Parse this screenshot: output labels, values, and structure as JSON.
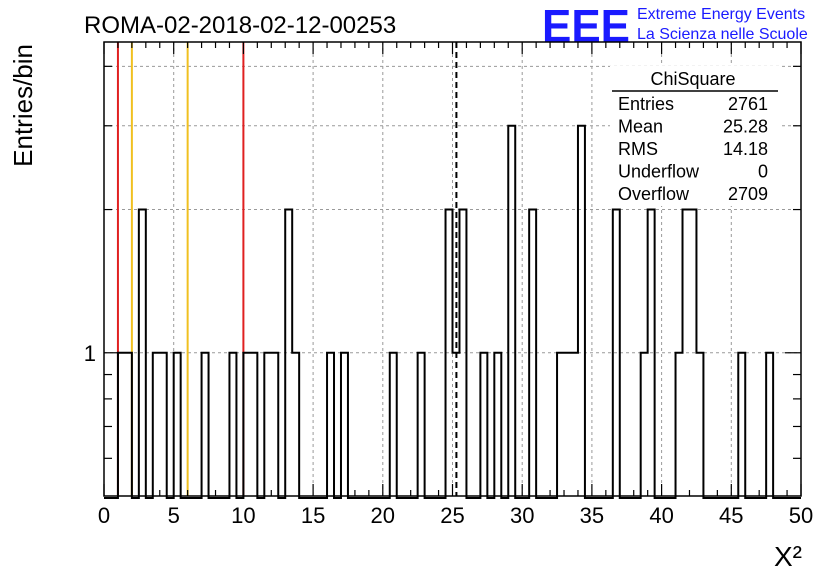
{
  "header": {
    "title": "ROMA-02-2018-02-12-00253",
    "logo_text": "EEE",
    "logo_line1": "Extreme Energy Events",
    "logo_line2": "La Scienza nelle Scuole",
    "logo_color": "#1a1aff"
  },
  "stats_box": {
    "title": "ChiSquare",
    "rows": [
      {
        "label": "Entries",
        "value": "2761"
      },
      {
        "label": "Mean",
        "value": "25.28"
      },
      {
        "label": "RMS",
        "value": "14.18"
      },
      {
        "label": "Underflow",
        "value": "0"
      },
      {
        "label": "Overflow",
        "value": "2709"
      }
    ]
  },
  "chart_data": {
    "type": "bar",
    "histogram": "step",
    "xlabel": "X²",
    "ylabel": "Entries/bin",
    "xlim": [
      0,
      50
    ],
    "ylim": [
      0.5,
      4.5
    ],
    "yscale": "log",
    "bin_width": 0.5,
    "grid": true,
    "xticks": [
      0,
      5,
      10,
      15,
      20,
      25,
      30,
      35,
      40,
      45,
      50
    ],
    "ytick_labels": [
      {
        "value": 1,
        "label": "1"
      }
    ],
    "bins": [
      {
        "x": 1.0,
        "y": 1
      },
      {
        "x": 1.5,
        "y": 1
      },
      {
        "x": 2.5,
        "y": 2
      },
      {
        "x": 3.5,
        "y": 1
      },
      {
        "x": 4.0,
        "y": 1
      },
      {
        "x": 5.0,
        "y": 1
      },
      {
        "x": 7.0,
        "y": 1
      },
      {
        "x": 9.0,
        "y": 1
      },
      {
        "x": 10.0,
        "y": 1
      },
      {
        "x": 10.5,
        "y": 1
      },
      {
        "x": 11.5,
        "y": 1
      },
      {
        "x": 12.0,
        "y": 1
      },
      {
        "x": 13.0,
        "y": 2
      },
      {
        "x": 13.5,
        "y": 1
      },
      {
        "x": 16.0,
        "y": 1
      },
      {
        "x": 17.0,
        "y": 1
      },
      {
        "x": 20.5,
        "y": 1
      },
      {
        "x": 22.5,
        "y": 1
      },
      {
        "x": 24.5,
        "y": 2
      },
      {
        "x": 25.0,
        "y": 1
      },
      {
        "x": 25.5,
        "y": 2
      },
      {
        "x": 27.0,
        "y": 1
      },
      {
        "x": 28.0,
        "y": 1
      },
      {
        "x": 29.0,
        "y": 3
      },
      {
        "x": 30.5,
        "y": 2
      },
      {
        "x": 32.5,
        "y": 1
      },
      {
        "x": 33.0,
        "y": 1
      },
      {
        "x": 33.5,
        "y": 1
      },
      {
        "x": 34.0,
        "y": 3
      },
      {
        "x": 36.5,
        "y": 2
      },
      {
        "x": 38.5,
        "y": 1
      },
      {
        "x": 39.0,
        "y": 2
      },
      {
        "x": 41.0,
        "y": 1
      },
      {
        "x": 41.5,
        "y": 2
      },
      {
        "x": 42.0,
        "y": 2
      },
      {
        "x": 42.5,
        "y": 1
      },
      {
        "x": 45.5,
        "y": 1
      },
      {
        "x": 47.5,
        "y": 1
      }
    ],
    "vertical_lines": [
      {
        "x": 1.0,
        "color": "#e02020",
        "style": "solid"
      },
      {
        "x": 2.0,
        "color": "#f0c020",
        "style": "solid"
      },
      {
        "x": 6.0,
        "color": "#f0c020",
        "style": "solid"
      },
      {
        "x": 10.0,
        "color": "#e02020",
        "style": "solid"
      },
      {
        "x": 25.28,
        "color": "#000000",
        "style": "dashed"
      }
    ]
  }
}
